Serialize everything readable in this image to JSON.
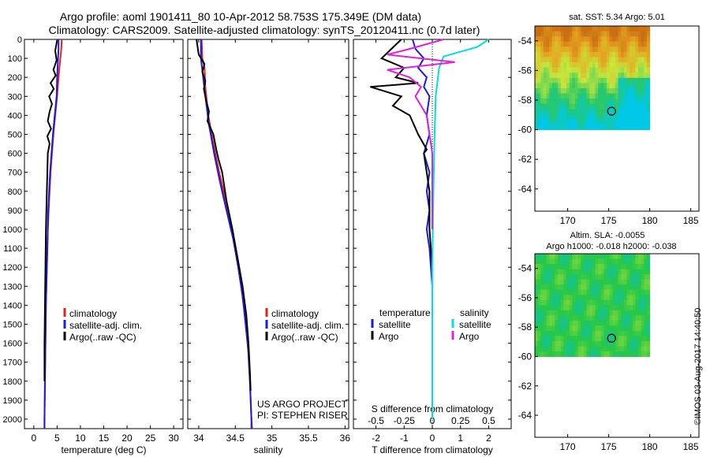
{
  "header": {
    "title_line1": "Argo profile: aoml 1901411_80 10-Apr-2012 58.753S 175.349E (DM data)",
    "title_line2": "Climatology: CARS2009. Satellite-adjusted climatology: synTS_20120411.nc (0.7d later)"
  },
  "colors": {
    "climatology": "#e8201a",
    "satellite": "#1a1ae0",
    "argo": "#000000",
    "sat_salinity": "#00e0e0",
    "argo_salinity": "#e020e0"
  },
  "chart_data": [
    {
      "type": "line",
      "panel": "temperature",
      "xlabel": "temperature (deg C)",
      "xticks": [
        "0",
        "5",
        "10",
        "15",
        "20",
        "25",
        "30"
      ],
      "xlim": [
        -2,
        32
      ],
      "yticks": [
        "0",
        "100",
        "200",
        "300",
        "400",
        "500",
        "600",
        "700",
        "800",
        "900",
        "1000",
        "1100",
        "1200",
        "1300",
        "1400",
        "1500",
        "1600",
        "1700",
        "1800",
        "1900",
        "2000"
      ],
      "ylim": [
        0,
        2050
      ],
      "legend": [
        "climatology",
        "satellite-adj. clim.",
        "Argo(..raw -QC)"
      ],
      "series": [
        {
          "name": "climatology",
          "color_key": "climatology",
          "points": [
            [
              6.0,
              0
            ],
            [
              5.9,
              50
            ],
            [
              5.7,
              100
            ],
            [
              5.5,
              150
            ],
            [
              5.3,
              200
            ],
            [
              5.0,
              300
            ],
            [
              4.6,
              400
            ],
            [
              4.2,
              500
            ],
            [
              3.9,
              600
            ],
            [
              3.6,
              700
            ],
            [
              3.4,
              800
            ],
            [
              3.2,
              900
            ],
            [
              3.0,
              1000
            ],
            [
              2.9,
              1100
            ],
            [
              2.8,
              1200
            ],
            [
              2.7,
              1300
            ],
            [
              2.6,
              1400
            ],
            [
              2.5,
              1600
            ],
            [
              2.4,
              1800
            ],
            [
              2.3,
              2000
            ],
            [
              2.3,
              2050
            ]
          ]
        },
        {
          "name": "satellite-adj. clim.",
          "color_key": "satellite",
          "points": [
            [
              5.3,
              0
            ],
            [
              5.3,
              50
            ],
            [
              5.2,
              100
            ],
            [
              5.0,
              200
            ],
            [
              4.9,
              300
            ],
            [
              4.5,
              400
            ],
            [
              4.1,
              500
            ],
            [
              3.8,
              600
            ],
            [
              3.5,
              700
            ],
            [
              3.3,
              800
            ],
            [
              3.1,
              900
            ],
            [
              3.0,
              1000
            ],
            [
              2.9,
              1100
            ],
            [
              2.8,
              1200
            ],
            [
              2.7,
              1300
            ],
            [
              2.6,
              1400
            ],
            [
              2.5,
              1600
            ],
            [
              2.4,
              1800
            ],
            [
              2.3,
              2000
            ],
            [
              2.3,
              2050
            ]
          ]
        },
        {
          "name": "Argo(..raw -QC)",
          "color_key": "argo",
          "points": [
            [
              5.0,
              5
            ],
            [
              4.6,
              60
            ],
            [
              4.9,
              110
            ],
            [
              4.2,
              160
            ],
            [
              4.7,
              190
            ],
            [
              3.6,
              230
            ],
            [
              4.3,
              260
            ],
            [
              3.3,
              300
            ],
            [
              3.9,
              340
            ],
            [
              3.4,
              380
            ],
            [
              3.0,
              430
            ],
            [
              3.7,
              470
            ],
            [
              2.9,
              510
            ],
            [
              3.4,
              550
            ],
            [
              3.0,
              600
            ],
            [
              2.9,
              700
            ],
            [
              2.8,
              800
            ],
            [
              2.7,
              900
            ],
            [
              2.6,
              1000
            ],
            [
              2.5,
              1200
            ],
            [
              2.4,
              1400
            ],
            [
              2.3,
              1600
            ],
            [
              2.3,
              1800
            ]
          ]
        }
      ]
    },
    {
      "type": "line",
      "panel": "salinity",
      "xlabel": "salinity",
      "xticks": [
        "34",
        "34.5",
        "35",
        "35.5",
        "36"
      ],
      "xlim": [
        33.85,
        36.05
      ],
      "ylim": [
        0,
        2050
      ],
      "legend": [
        "climatology",
        "satellite-adj. clim.",
        "Argo(..raw -QC)"
      ],
      "annotation": [
        "US ARGO PROJECT",
        "PI: STEPHEN RISER"
      ],
      "series": [
        {
          "name": "climatology",
          "color_key": "climatology",
          "points": [
            [
              34.04,
              0
            ],
            [
              34.05,
              100
            ],
            [
              34.08,
              150
            ],
            [
              34.09,
              250
            ],
            [
              34.13,
              400
            ],
            [
              34.2,
              550
            ],
            [
              34.28,
              700
            ],
            [
              34.37,
              850
            ],
            [
              34.46,
              1000
            ],
            [
              34.52,
              1150
            ],
            [
              34.58,
              1300
            ],
            [
              34.63,
              1450
            ],
            [
              34.67,
              1600
            ],
            [
              34.7,
              1800
            ],
            [
              34.72,
              2000
            ],
            [
              34.73,
              2050
            ]
          ]
        },
        {
          "name": "satellite-adj. clim.",
          "color_key": "satellite",
          "points": [
            [
              34.03,
              0
            ],
            [
              34.03,
              100
            ],
            [
              34.06,
              200
            ],
            [
              34.09,
              300
            ],
            [
              34.14,
              450
            ],
            [
              34.21,
              600
            ],
            [
              34.29,
              750
            ],
            [
              34.38,
              900
            ],
            [
              34.47,
              1050
            ],
            [
              34.54,
              1200
            ],
            [
              34.6,
              1350
            ],
            [
              34.64,
              1500
            ],
            [
              34.68,
              1650
            ],
            [
              34.7,
              1800
            ],
            [
              34.72,
              2000
            ],
            [
              34.72,
              2050
            ]
          ]
        },
        {
          "name": "Argo(..raw -QC)",
          "color_key": "argo",
          "points": [
            [
              33.97,
              0
            ],
            [
              34.0,
              80
            ],
            [
              34.08,
              130
            ],
            [
              34.05,
              170
            ],
            [
              34.09,
              220
            ],
            [
              34.07,
              260
            ],
            [
              34.1,
              320
            ],
            [
              34.14,
              380
            ],
            [
              34.12,
              430
            ],
            [
              34.2,
              500
            ],
            [
              34.24,
              580
            ],
            [
              34.27,
              630
            ],
            [
              34.32,
              700
            ],
            [
              34.38,
              850
            ],
            [
              34.46,
              1000
            ],
            [
              34.53,
              1150
            ],
            [
              34.6,
              1300
            ],
            [
              34.65,
              1450
            ],
            [
              34.68,
              1600
            ],
            [
              34.7,
              1750
            ],
            [
              34.71,
              1850
            ]
          ]
        }
      ]
    },
    {
      "type": "line",
      "panel": "difference",
      "xlabel": "T difference from climatology",
      "xticks": [
        "-2",
        "-1",
        "0",
        "1",
        "2"
      ],
      "xlim": [
        -2.8,
        2.8
      ],
      "x2label": "S difference from climatology",
      "x2ticks": [
        "-0.5",
        "-0.25",
        "0",
        "0.25",
        "0.5"
      ],
      "ylim": [
        0,
        2050
      ],
      "legend_headers": [
        "temperature",
        "salinity"
      ],
      "legend": [
        "satellite",
        "Argo",
        "satellite",
        "Argo"
      ],
      "series": [
        {
          "name": "temperature satellite",
          "color_key": "satellite",
          "points": [
            [
              -0.7,
              0
            ],
            [
              -0.6,
              50
            ],
            [
              -0.3,
              100
            ],
            [
              -0.5,
              150
            ],
            [
              -0.2,
              200
            ],
            [
              -0.3,
              250
            ],
            [
              -0.1,
              300
            ],
            [
              -0.2,
              400
            ],
            [
              -0.1,
              500
            ],
            [
              -0.3,
              600
            ],
            [
              -0.2,
              650
            ],
            [
              -0.1,
              700
            ],
            [
              -0.2,
              800
            ],
            [
              -0.1,
              900
            ],
            [
              -0.2,
              1000
            ],
            [
              -0.1,
              1100
            ],
            [
              0,
              1300
            ],
            [
              0,
              1800
            ]
          ]
        },
        {
          "name": "temperature Argo",
          "color_key": "argo",
          "points": [
            [
              -1.1,
              0
            ],
            [
              -1.8,
              100
            ],
            [
              -1.0,
              150
            ],
            [
              -1.3,
              200
            ],
            [
              -0.5,
              230
            ],
            [
              -2.2,
              250
            ],
            [
              -1.1,
              300
            ],
            [
              -1.4,
              350
            ],
            [
              -0.8,
              400
            ],
            [
              -0.5,
              500
            ],
            [
              -0.2,
              580
            ],
            [
              -0.3,
              600
            ],
            [
              -0.2,
              700
            ],
            [
              -0.1,
              800
            ],
            [
              -0.1,
              1000
            ],
            [
              0,
              1200
            ],
            [
              0,
              1800
            ]
          ]
        },
        {
          "name": "salinity satellite",
          "color_key": "sat_salinity",
          "points": [
            [
              0.5,
              0
            ],
            [
              0.4,
              40
            ],
            [
              0.1,
              90
            ],
            [
              0.06,
              150
            ],
            [
              0.03,
              300
            ],
            [
              0.02,
              500
            ],
            [
              0.01,
              800
            ],
            [
              0.0,
              1200
            ],
            [
              0.0,
              1600
            ],
            [
              0.0,
              2000
            ]
          ]
        },
        {
          "name": "salinity Argo",
          "color_key": "argo_salinity",
          "points": [
            [
              0.1,
              0
            ],
            [
              -0.2,
              50
            ],
            [
              -0.4,
              80
            ],
            [
              0.2,
              120
            ],
            [
              -0.4,
              160
            ],
            [
              -0.2,
              200
            ],
            [
              -0.1,
              250
            ],
            [
              -0.15,
              300
            ],
            [
              -0.05,
              400
            ],
            [
              0.0,
              600
            ],
            [
              0.0,
              1000
            ]
          ]
        }
      ]
    },
    {
      "type": "heatmap",
      "panel": "sst-map",
      "title": "sat. SST: 5.34  Argo: 5.01",
      "xticks": [
        "170",
        "175",
        "180",
        "185"
      ],
      "yticks": [
        "-54",
        "-56",
        "-58",
        "-60",
        "-62",
        "-64"
      ],
      "xlim": [
        166,
        186
      ],
      "ylim": [
        -65.5,
        -53
      ],
      "data_extent": {
        "lon": [
          166,
          180
        ],
        "lat": [
          -60,
          -53
        ]
      },
      "float_position": {
        "lon": 175.349,
        "lat": -58.753
      }
    },
    {
      "type": "heatmap",
      "panel": "ssh-map",
      "title_line1": "Altim. SLA: -0.0055",
      "title_line2": "Argo h1000: -0.018 h2000: -0.038",
      "xticks": [
        "170",
        "175",
        "180",
        "185"
      ],
      "yticks": [
        "-54",
        "-56",
        "-58",
        "-60",
        "-62",
        "-64"
      ],
      "xlim": [
        166,
        186
      ],
      "ylim": [
        -65.5,
        -53
      ],
      "data_extent": {
        "lon": [
          166,
          180
        ],
        "lat": [
          -60,
          -53
        ]
      },
      "float_position": {
        "lon": 175.349,
        "lat": -58.753
      }
    }
  ],
  "credit": "©IMOS 03-Aug-2017 14:40:50"
}
